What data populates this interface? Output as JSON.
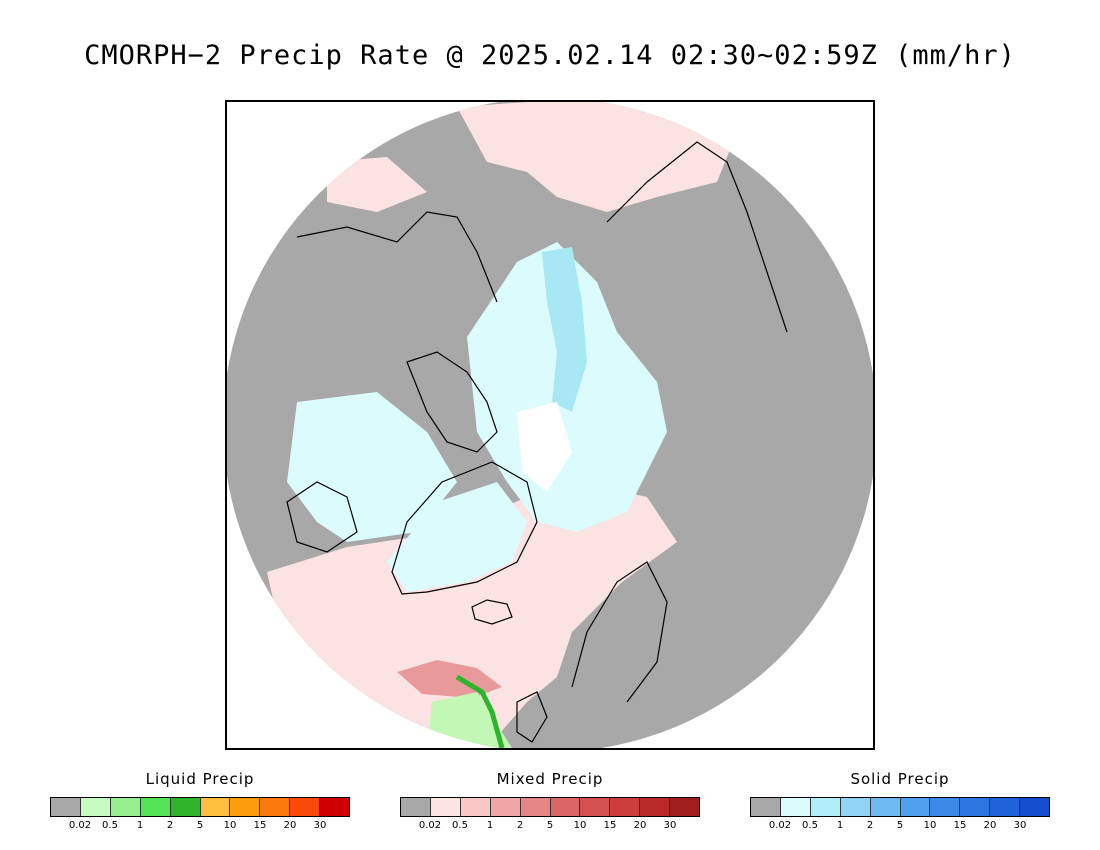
{
  "title": "CMORPH−2 Precip Rate @ 2025.02.14 02:30~02:59Z (mm/hr)",
  "map": {
    "projection": "north polar stereographic",
    "colors": {
      "background_no_precip": "#a8a8a8",
      "mixed_light": "#fce3e3",
      "solid_light": "#dcfbfc",
      "solid_medium": "#a8e8f4",
      "snow_white": "#ffffff",
      "liquid_light": "#c2f7b5",
      "liquid_core": "#2fb52b",
      "mixed_medium": "#e89a9a",
      "coastline": "#000000"
    }
  },
  "legends": [
    {
      "title": "Liquid Precip",
      "colors": [
        "#a8a8a8",
        "#c7fbc1",
        "#95ef8c",
        "#55e454",
        "#2fb52b",
        "#fdbf3d",
        "#fd9d0c",
        "#fb780a",
        "#f94b07",
        "#d00000"
      ],
      "ticks": [
        "0.02",
        "0.5",
        "1",
        "2",
        "5",
        "10",
        "15",
        "20",
        "30"
      ]
    },
    {
      "title": "Mixed Precip",
      "colors": [
        "#a8a8a8",
        "#fde3e3",
        "#fac7c7",
        "#f0a6a6",
        "#e68585",
        "#dc6666",
        "#d55252",
        "#cc3d3d",
        "#b82a2a",
        "#a01e1e"
      ],
      "ticks": [
        "0.02",
        "0.5",
        "1",
        "2",
        "5",
        "10",
        "15",
        "20",
        "30"
      ]
    },
    {
      "title": "Solid Precip",
      "colors": [
        "#a8a8a8",
        "#dbfcfc",
        "#aeeffa",
        "#90d4f6",
        "#6fbaf2",
        "#4fa0ee",
        "#3b8ae8",
        "#2d76e2",
        "#2162da",
        "#154ecc"
      ],
      "ticks": [
        "0.02",
        "0.5",
        "1",
        "2",
        "5",
        "10",
        "15",
        "20",
        "30"
      ]
    }
  ]
}
